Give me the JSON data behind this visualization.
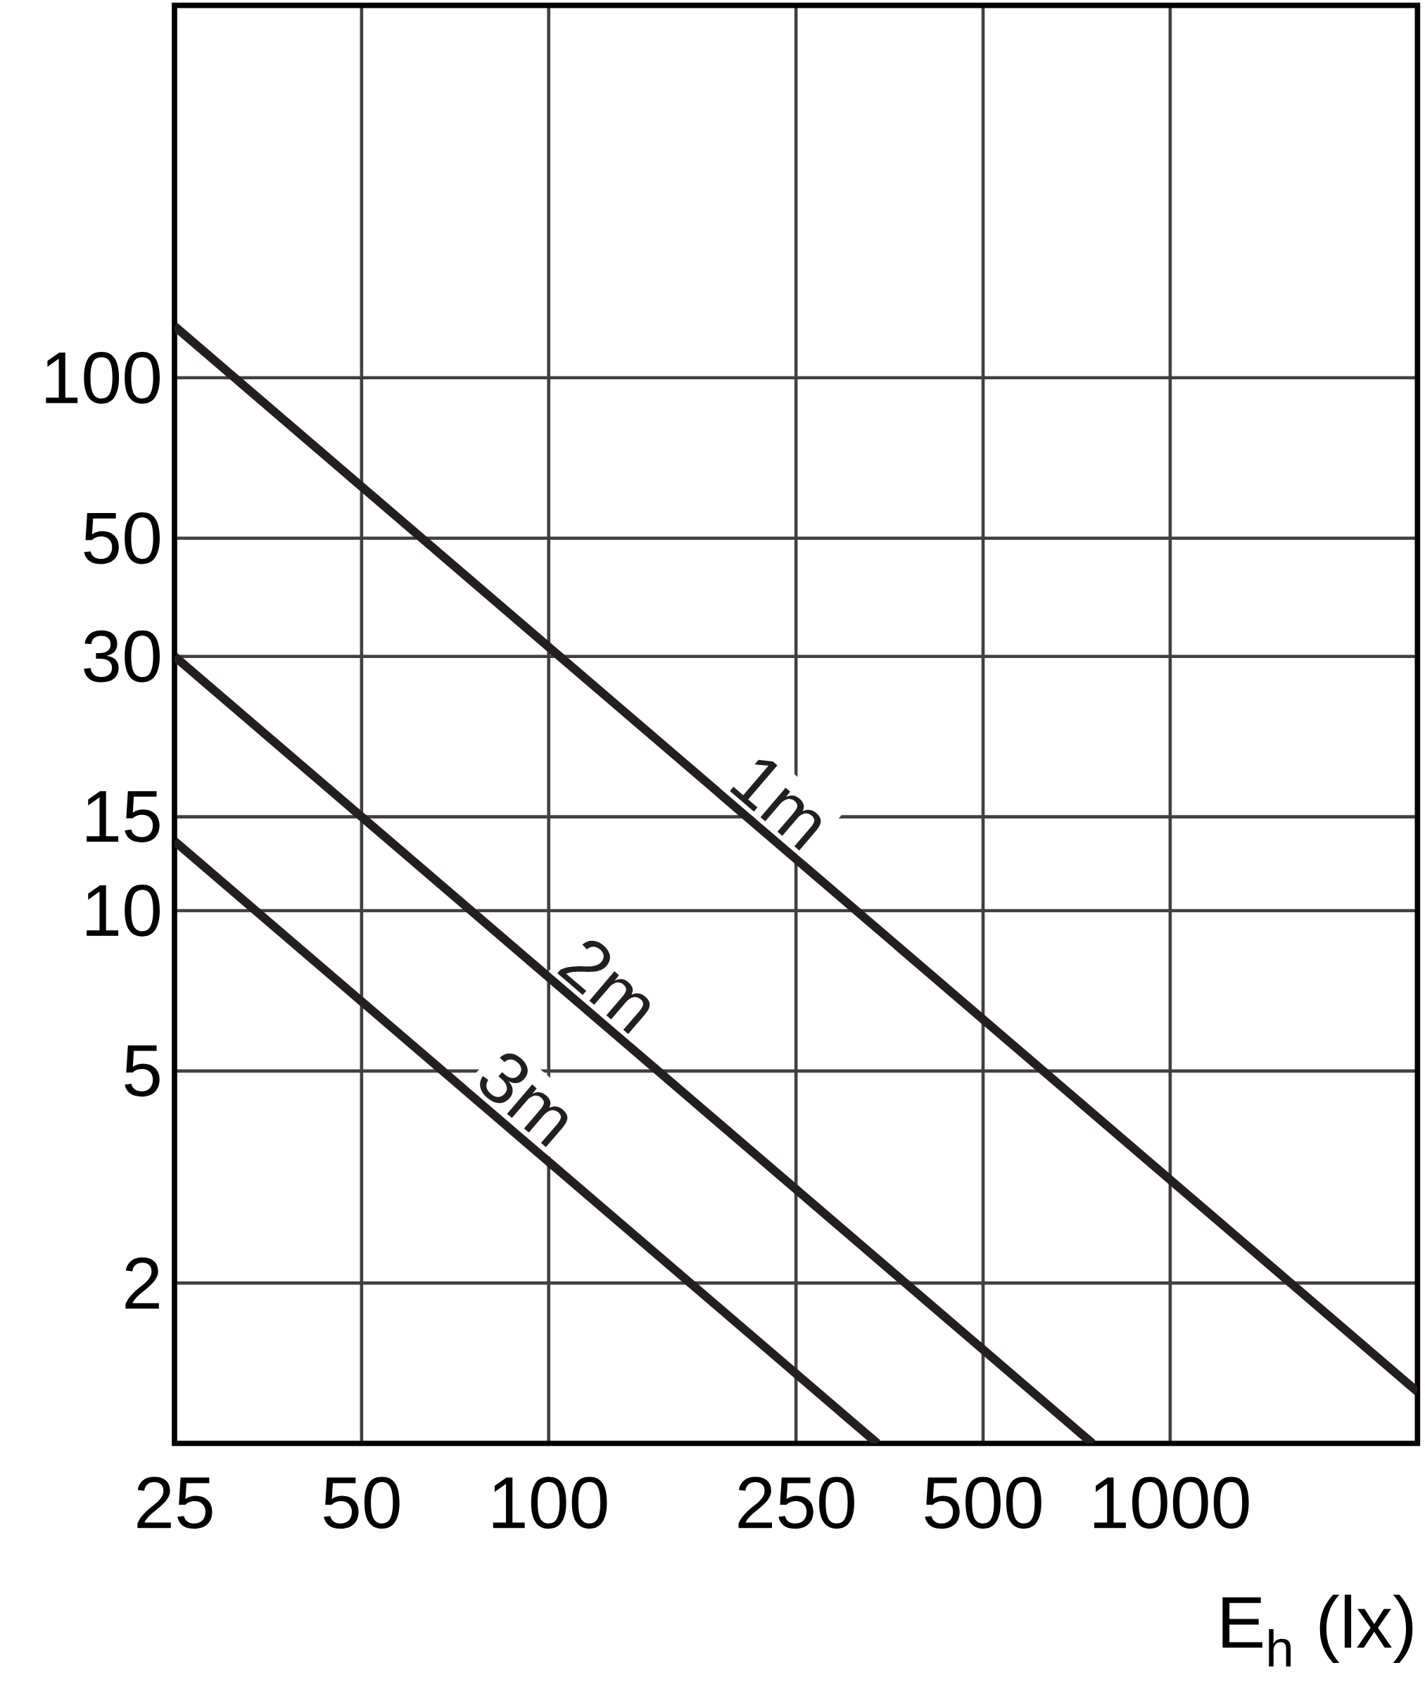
{
  "chart_data": {
    "type": "line",
    "xlabel": "E$_{h}$ (lx)",
    "log": "xy",
    "grid": true,
    "xlim": [
      25,
      2500
    ],
    "ylim": [
      1,
      500
    ],
    "xticks": [
      25,
      50,
      100,
      250,
      500,
      1000
    ],
    "yticks": [
      2,
      5,
      10,
      15,
      30,
      50,
      100
    ],
    "series": [
      {
        "name": "1m",
        "color": "#231f20",
        "x": [
          25,
          2500
        ],
        "values": [
          125,
          1.25
        ]
      },
      {
        "name": "2m",
        "color": "#231f20",
        "x": [
          25,
          750
        ],
        "values": [
          30,
          1
        ]
      },
      {
        "name": "3m",
        "color": "#231f20",
        "x": [
          25,
          338
        ],
        "values": [
          13.5,
          1
        ]
      }
    ]
  }
}
